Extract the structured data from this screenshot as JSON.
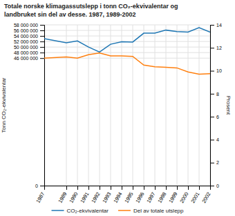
{
  "chart_data": {
    "type": "line",
    "title": "Totale norske klimagassutslepp i tonn CO₂-ekvivalentar og\nlandbruket sin del av desse. 1987, 1989-2002",
    "ylabel": "Tonn CO₂-ekvivalentar",
    "y2label": "Prosent",
    "x": [
      1987,
      1989,
      1990,
      1991,
      1992,
      1993,
      1994,
      1995,
      1996,
      1997,
      1998,
      1999,
      2000,
      2001,
      2002
    ],
    "xlim": [
      1987,
      2002
    ],
    "xticks": [
      1987,
      1989,
      1990,
      1991,
      1992,
      1993,
      1994,
      1995,
      1996,
      1997,
      1998,
      1999,
      2000,
      2001,
      2002
    ],
    "series": [
      {
        "name": "CO₂-ekvivalentar",
        "values": [
          53000000,
          51500000,
          52200000,
          50000000,
          48200000,
          51000000,
          51900000,
          51800000,
          55000000,
          55000000,
          56100000,
          55600000,
          55400000,
          57000000,
          55400000
        ]
      },
      {
        "name": "Del av totale utslepp",
        "axis": "y2",
        "values": [
          11.1,
          11.2,
          11.1,
          11.4,
          11.55,
          11.3,
          11.3,
          11.25,
          10.5,
          10.35,
          10.3,
          10.25,
          9.9,
          9.7,
          9.75
        ]
      }
    ],
    "ylim": [
      0,
      58000000
    ],
    "yticks": [
      0,
      {
        "value": 46000000,
        "label": "46 000 000"
      },
      {
        "value": 48000000,
        "label": "48 000 000"
      },
      {
        "value": 50000000,
        "label": "50 000 000"
      },
      {
        "value": 52000000,
        "label": "52 000 000"
      },
      {
        "value": 54000000,
        "label": "54 000 000"
      },
      {
        "value": 56000000,
        "label": "56 000 000"
      },
      {
        "value": 58000000,
        "label": "58 000 000"
      }
    ],
    "y2lim": [
      0,
      14
    ],
    "y2ticks": [
      0,
      2,
      4,
      6,
      8,
      10,
      12,
      14
    ],
    "grid": true,
    "legend": "bottom"
  }
}
